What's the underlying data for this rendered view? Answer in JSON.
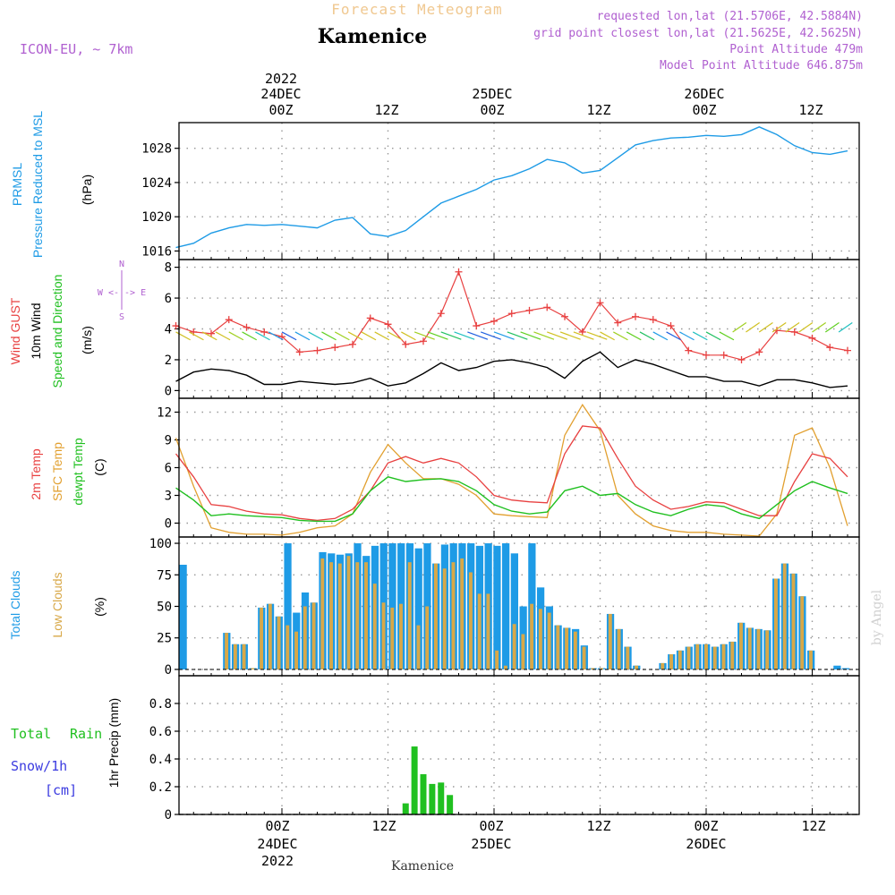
{
  "header": {
    "title": "Forecast Meteogram",
    "location": "Kamenice",
    "model": "ICON-EU, ~ 7km",
    "requested": "requested lon,lat (21.5706E, 42.5884N)",
    "grid": "grid point closest lon,lat (21.5625E, 42.5625N)",
    "point_alt": "Point Altitude 479m",
    "model_alt": "Model Point Altitude 646.875m",
    "footer_location": "Kamenice",
    "credit": "by Angel"
  },
  "colors": {
    "pressure": "#1e9be6",
    "gust": "#e84040",
    "wind": "#000000",
    "temp2m": "#e84040",
    "sfc": "#e2a030",
    "dewpt": "#20c020",
    "total_clouds": "#1e9be6",
    "low_clouds": "#d8a848",
    "rain": "#20c020",
    "snow": "#3b3be0",
    "header": "#b060d0",
    "title_faded": "#f0c890"
  },
  "axes": {
    "top_times": [
      "00Z",
      "12Z",
      "00Z",
      "12Z",
      "00Z",
      "12Z"
    ],
    "top_dates": [
      "24DEC",
      "25DEC",
      "26DEC"
    ],
    "top_year": "2022",
    "bottom_times": [
      "00Z",
      "12Z",
      "00Z",
      "12Z",
      "00Z",
      "12Z"
    ],
    "bottom_dates": [
      "24DEC",
      "25DEC",
      "26DEC"
    ],
    "bottom_year": "2022"
  },
  "panel_labels": {
    "pressure": [
      "PRMSL",
      "Pressure Reduced to MSL",
      "(hPa)"
    ],
    "wind": [
      "Wind GUST",
      "10m Wind",
      "Speed and Direction",
      "(m/s)"
    ],
    "compass": [
      "N",
      "S",
      "W <-|-> E"
    ],
    "temp": [
      "2m Temp",
      "SFC Temp",
      "dewpt Temp",
      "(C)"
    ],
    "clouds": [
      "Total Clouds",
      "Low Clouds",
      "(%)"
    ],
    "precip": [
      "Total",
      "Rain",
      "Snow/1h",
      "[cm]",
      "1hr Precip (mm)"
    ]
  },
  "chart_data": [
    {
      "type": "line",
      "title": "PRMSL Pressure Reduced to MSL",
      "ylabel": "(hPa)",
      "ylim": [
        1015,
        1031
      ],
      "yticks": [
        1016,
        1020,
        1024,
        1028
      ],
      "x_hours": [
        -12,
        -10,
        -8,
        -6,
        -4,
        -2,
        0,
        2,
        4,
        6,
        8,
        10,
        12,
        14,
        16,
        18,
        20,
        22,
        24,
        26,
        28,
        30,
        32,
        34,
        36,
        38,
        40,
        42,
        44,
        46,
        48,
        50,
        52,
        54,
        56,
        58,
        60,
        62,
        64
      ],
      "series": [
        {
          "name": "PRMSL",
          "values": [
            1016.4,
            1016.9,
            1018.1,
            1018.7,
            1019.1,
            1019.0,
            1019.1,
            1018.9,
            1018.7,
            1019.6,
            1019.9,
            1018.0,
            1017.7,
            1018.4,
            1020.0,
            1021.6,
            1022.4,
            1023.2,
            1024.3,
            1024.8,
            1025.6,
            1026.7,
            1026.3,
            1025.1,
            1025.4,
            1026.9,
            1028.4,
            1028.9,
            1029.2,
            1029.3,
            1029.5,
            1029.4,
            1029.6,
            1030.5,
            1029.6,
            1028.3,
            1027.5,
            1027.3,
            1027.7
          ]
        }
      ]
    },
    {
      "type": "line",
      "title": "Wind GUST / 10m Wind Speed and Direction",
      "ylabel": "(m/s)",
      "ylim": [
        -0.5,
        8.5
      ],
      "yticks": [
        0,
        2,
        4,
        6,
        8
      ],
      "x_hours": [
        -12,
        -10,
        -8,
        -6,
        -4,
        -2,
        0,
        2,
        4,
        6,
        8,
        10,
        12,
        14,
        16,
        18,
        20,
        22,
        24,
        26,
        28,
        30,
        32,
        34,
        36,
        38,
        40,
        42,
        44,
        46,
        48,
        50,
        52,
        54,
        56,
        58,
        60,
        62,
        64
      ],
      "series": [
        {
          "name": "Wind GUST",
          "values": [
            4.2,
            3.8,
            3.7,
            4.6,
            4.1,
            3.8,
            3.5,
            2.5,
            2.6,
            2.8,
            3.0,
            4.7,
            4.3,
            3.0,
            3.2,
            5.0,
            7.7,
            4.2,
            4.5,
            5.0,
            5.2,
            5.4,
            4.8,
            3.8,
            5.7,
            4.4,
            4.8,
            4.6,
            4.2,
            2.6,
            2.3,
            2.3,
            2.0,
            2.5,
            3.9,
            3.8,
            3.4,
            2.8,
            2.6
          ]
        },
        {
          "name": "10m Wind",
          "values": [
            0.6,
            1.2,
            1.4,
            1.3,
            1.0,
            0.4,
            0.4,
            0.6,
            0.5,
            0.4,
            0.5,
            0.8,
            0.3,
            0.5,
            1.1,
            1.8,
            1.3,
            1.5,
            1.9,
            2.0,
            1.8,
            1.5,
            0.8,
            1.9,
            2.5,
            1.5,
            2.0,
            1.7,
            1.3,
            0.9,
            0.9,
            0.6,
            0.6,
            0.3,
            0.7,
            0.7,
            0.5,
            0.2,
            0.3
          ]
        }
      ]
    },
    {
      "type": "line",
      "title": "2m Temp / SFC Temp / dewpt Temp",
      "ylabel": "(C)",
      "ylim": [
        -1.5,
        13.5
      ],
      "yticks": [
        0,
        3,
        6,
        9,
        12
      ],
      "x_hours": [
        -12,
        -10,
        -8,
        -6,
        -4,
        -2,
        0,
        2,
        4,
        6,
        8,
        10,
        12,
        14,
        16,
        18,
        20,
        22,
        24,
        26,
        28,
        30,
        32,
        34,
        36,
        38,
        40,
        42,
        44,
        46,
        48,
        50,
        52,
        54,
        56,
        58,
        60,
        62,
        64
      ],
      "series": [
        {
          "name": "2m Temp",
          "values": [
            7.5,
            5.0,
            2.0,
            1.8,
            1.3,
            1.0,
            0.9,
            0.5,
            0.3,
            0.5,
            1.5,
            3.5,
            6.5,
            7.2,
            6.5,
            7.0,
            6.5,
            5.0,
            3.0,
            2.5,
            2.3,
            2.2,
            7.5,
            10.5,
            10.3,
            7.0,
            4.0,
            2.5,
            1.5,
            1.8,
            2.3,
            2.2,
            1.5,
            0.8,
            0.8,
            4.5,
            7.5,
            7.0,
            5.0
          ]
        },
        {
          "name": "SFC Temp",
          "values": [
            9.2,
            4.0,
            -0.5,
            -1.0,
            -1.2,
            -1.2,
            -1.3,
            -1.0,
            -0.5,
            -0.3,
            1.0,
            5.5,
            8.5,
            6.5,
            4.8,
            4.8,
            4.2,
            3.0,
            1.0,
            0.8,
            0.7,
            0.6,
            9.5,
            12.8,
            10.0,
            3.0,
            1.0,
            -0.3,
            -0.8,
            -1.0,
            -1.0,
            -1.2,
            -1.3,
            -1.4,
            1.0,
            9.5,
            10.3,
            6.0,
            -0.3
          ]
        },
        {
          "name": "dewpt Temp",
          "values": [
            3.8,
            2.5,
            0.8,
            1.0,
            0.8,
            0.7,
            0.6,
            0.3,
            0.2,
            0.2,
            1.0,
            3.5,
            5.0,
            4.5,
            4.7,
            4.8,
            4.5,
            3.5,
            2.0,
            1.3,
            1.0,
            1.2,
            3.5,
            4.0,
            3.0,
            3.2,
            2.0,
            1.2,
            0.8,
            1.5,
            2.0,
            1.8,
            1.0,
            0.5,
            2.0,
            3.5,
            4.5,
            3.8,
            3.2
          ]
        }
      ]
    },
    {
      "type": "bar",
      "title": "Total Clouds / Low Clouds",
      "ylabel": "(%)",
      "ylim": [
        -5,
        105
      ],
      "yticks": [
        0,
        25,
        50,
        75,
        100
      ],
      "x_hours_start": -12,
      "series": [
        {
          "name": "Total Clouds",
          "values": [
            83,
            0,
            0,
            0,
            0,
            29,
            20,
            20,
            1,
            49,
            52,
            42,
            100,
            45,
            61,
            53,
            93,
            92,
            91,
            92,
            100,
            90,
            98,
            100,
            100,
            100,
            100,
            96,
            100,
            84,
            99,
            100,
            100,
            100,
            98,
            100,
            98,
            100,
            92,
            50,
            100,
            65,
            50,
            35,
            33,
            32,
            19,
            1,
            1,
            44,
            32,
            18,
            3,
            0,
            0,
            5,
            12,
            15,
            18,
            20,
            20,
            18,
            20,
            22,
            37,
            33,
            32,
            31,
            72,
            84,
            76,
            58,
            15,
            0,
            0,
            3,
            1,
            0
          ]
        },
        {
          "name": "Low Clouds",
          "values": [
            0,
            0,
            0,
            0,
            0,
            29,
            20,
            20,
            1,
            49,
            52,
            42,
            35,
            30,
            50,
            53,
            88,
            85,
            84,
            90,
            85,
            85,
            68,
            53,
            49,
            52,
            85,
            35,
            50,
            84,
            80,
            85,
            88,
            77,
            60,
            60,
            15,
            3,
            36,
            28,
            52,
            48,
            45,
            35,
            33,
            30,
            18,
            1,
            1,
            44,
            32,
            18,
            3,
            0,
            0,
            5,
            12,
            15,
            18,
            20,
            20,
            18,
            20,
            22,
            37,
            33,
            32,
            31,
            72,
            84,
            76,
            58,
            15,
            0,
            0,
            0,
            0,
            0
          ]
        }
      ]
    },
    {
      "type": "bar",
      "title": "1hr Precip",
      "ylabel": "1hr Precip (mm)",
      "ylim": [
        0,
        1.0
      ],
      "yticks": [
        0,
        0.2,
        0.4,
        0.6,
        0.8
      ],
      "x_hours_start": 14,
      "series": [
        {
          "name": "Total Rain",
          "values": [
            0.08,
            0.49,
            0.29,
            0.22,
            0.23,
            0.14
          ]
        }
      ]
    }
  ]
}
